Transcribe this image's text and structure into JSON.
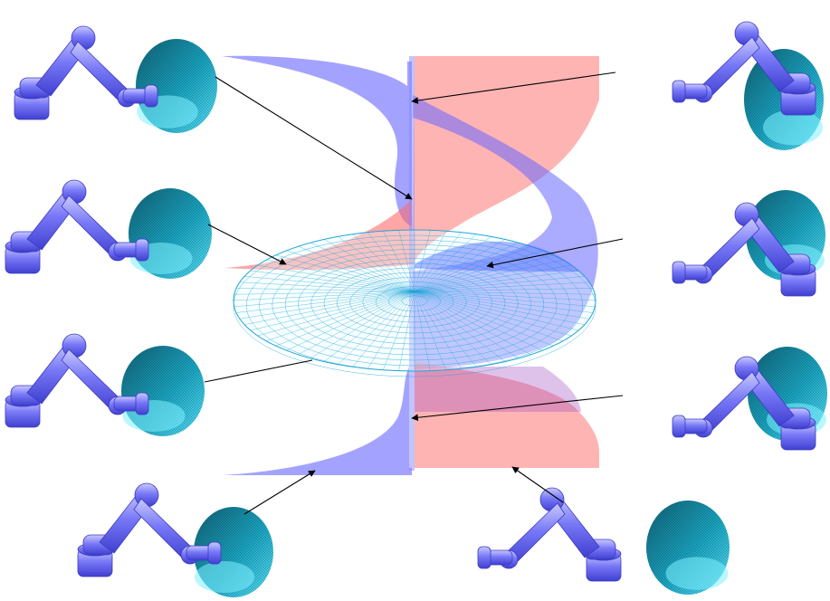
{
  "figure": {
    "description_free": true,
    "colors": {
      "background": "#ffffff",
      "robot_body": "#6e6ef5",
      "robot_highlight": "#c7c7ff",
      "robot_shadow": "#3d3dcc",
      "dome_dark": "#0f5f73",
      "dome_light": "#22d3ee",
      "sheet_blue": "#6666ff",
      "sheet_red": "#ff6b6b",
      "mesh": "#1ea6d6",
      "arrow": "#000000"
    },
    "robot_poses": [
      {
        "id": "top-left",
        "pose": "a"
      },
      {
        "id": "upper-mid-left",
        "pose": "b"
      },
      {
        "id": "lower-mid-left",
        "pose": "c"
      },
      {
        "id": "bottom-left",
        "pose": "d"
      },
      {
        "id": "top-right",
        "pose": "e"
      },
      {
        "id": "upper-mid-right",
        "pose": "f"
      },
      {
        "id": "lower-mid-right",
        "pose": "g"
      },
      {
        "id": "bottom-right",
        "pose": "h"
      }
    ]
  }
}
